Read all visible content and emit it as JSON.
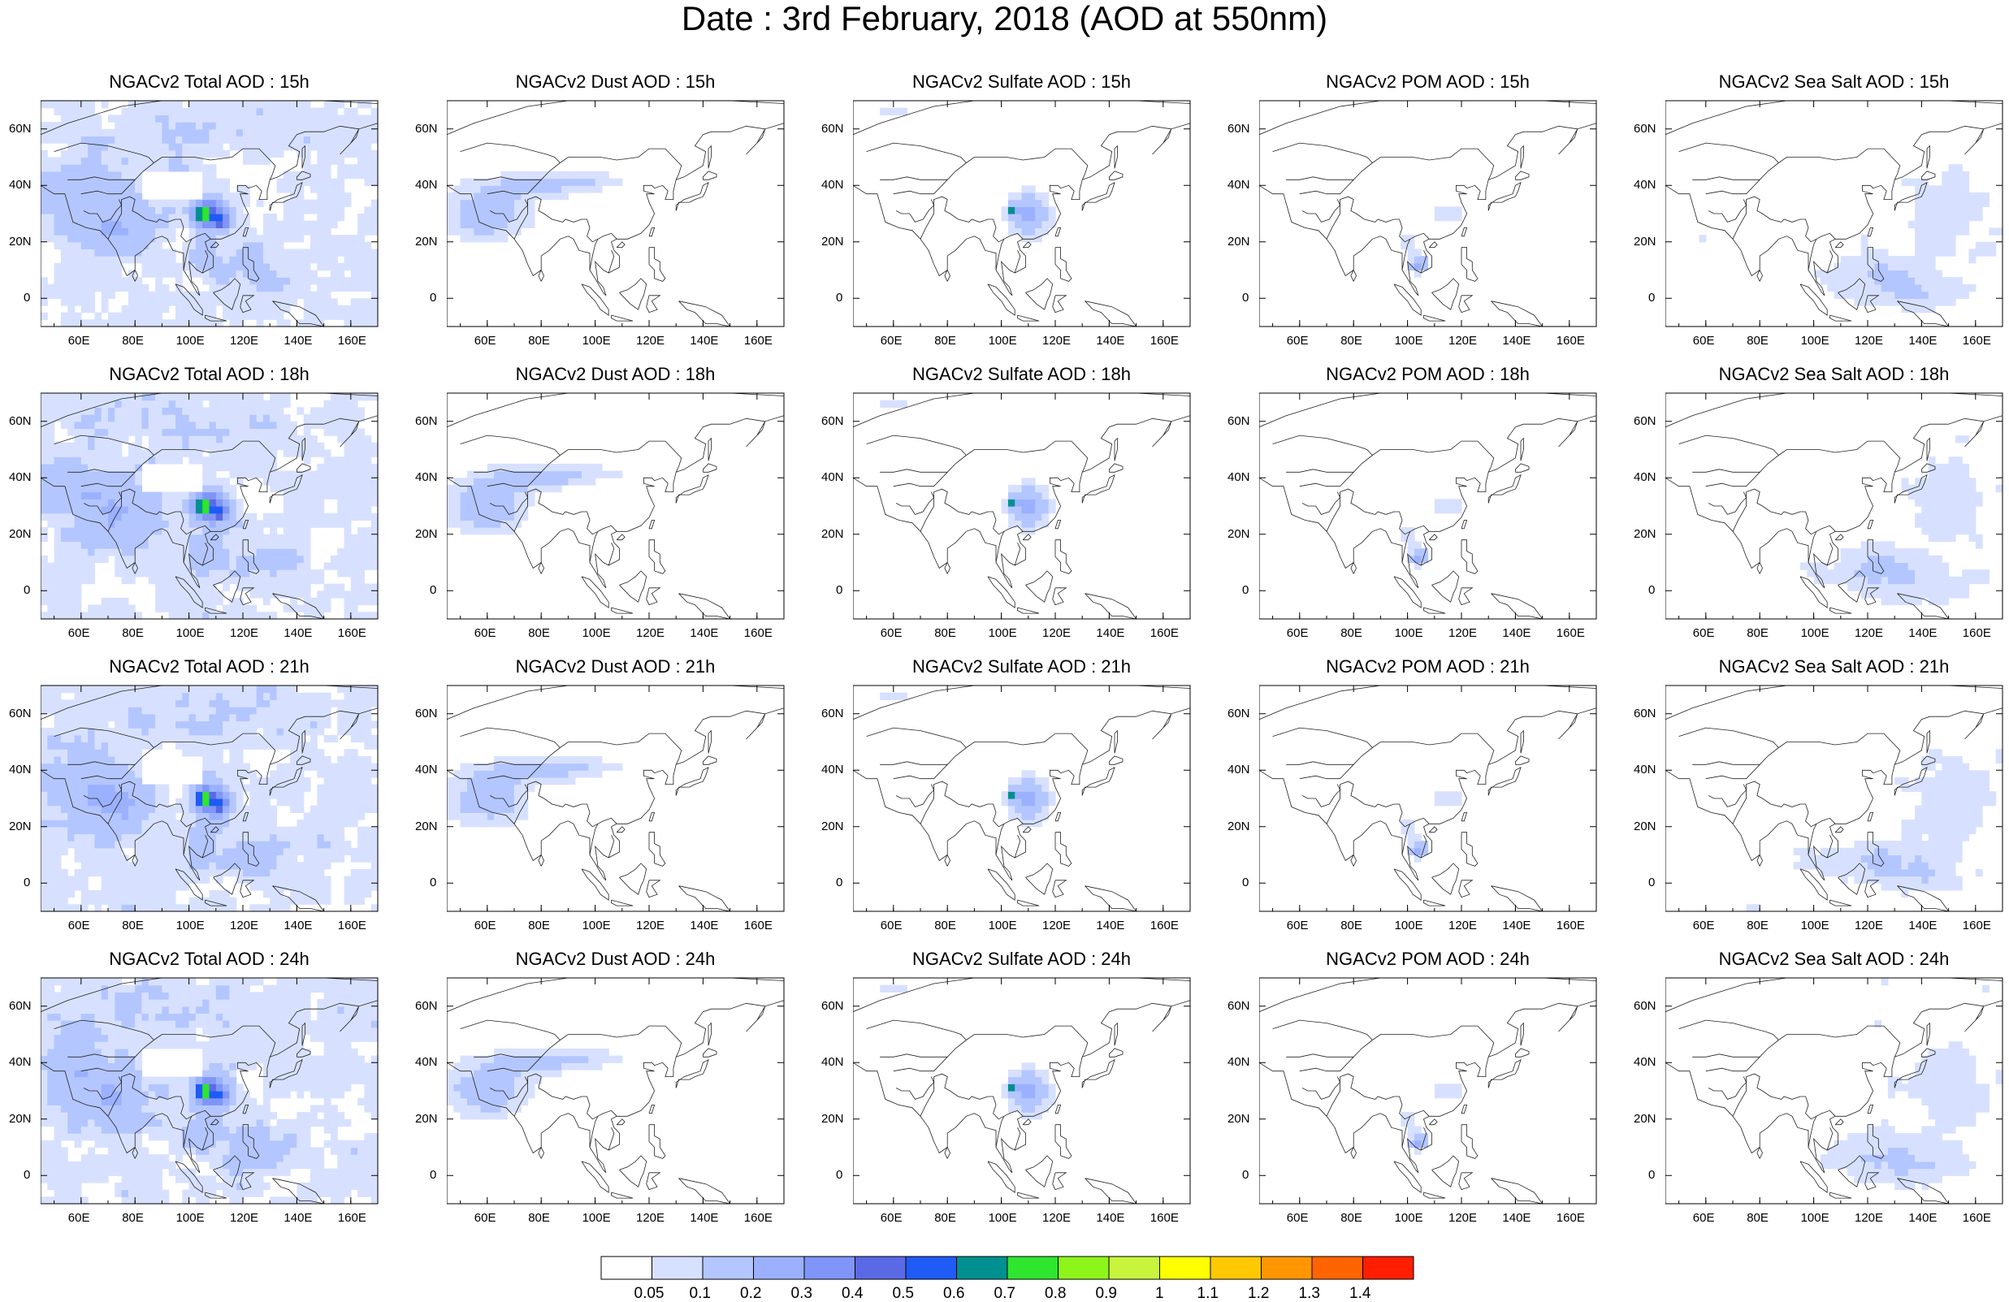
{
  "title": "Date : 3rd February, 2018 (AOD at 550nm)",
  "lon_ticks": [
    "60E",
    "80E",
    "100E",
    "120E",
    "140E",
    "160E"
  ],
  "lat_ticks": [
    "60N",
    "40N",
    "20N",
    "0"
  ],
  "panels": [
    [
      "NGACv2 Total AOD : 15h",
      "NGACv2 Dust AOD : 15h",
      "NGACv2 Sulfate AOD : 15h",
      "NGACv2 POM AOD : 15h",
      "NGACv2 Sea Salt AOD : 15h"
    ],
    [
      "NGACv2 Total AOD : 18h",
      "NGACv2 Dust AOD : 18h",
      "NGACv2 Sulfate AOD : 18h",
      "NGACv2 POM AOD : 18h",
      "NGACv2 Sea Salt AOD : 18h"
    ],
    [
      "NGACv2 Total AOD : 21h",
      "NGACv2 Dust AOD : 21h",
      "NGACv2 Sulfate AOD : 21h",
      "NGACv2 POM AOD : 21h",
      "NGACv2 Sea Salt AOD : 21h"
    ],
    [
      "NGACv2 Total AOD : 24h",
      "NGACv2 Dust AOD : 24h",
      "NGACv2 Sulfate AOD : 24h",
      "NGACv2 POM AOD : 24h",
      "NGACv2 Sea Salt  AOD : 24h"
    ]
  ],
  "colorbar": {
    "labels": [
      "0.05",
      "0.1",
      "0.2",
      "0.3",
      "0.4",
      "0.5",
      "0.6",
      "0.7",
      "0.8",
      "0.9",
      "1",
      "1.1",
      "1.2",
      "1.3",
      "1.4"
    ],
    "colors": [
      "#ffffff",
      "#d7e1ff",
      "#b4c6ff",
      "#9bb1ff",
      "#7f95f8",
      "#5a6ae6",
      "#1f5bf5",
      "#009090",
      "#2ee62e",
      "#8ef51a",
      "#c8f53c",
      "#ffff00",
      "#ffc800",
      "#ff9600",
      "#ff6400",
      "#ff1e00"
    ]
  }
}
